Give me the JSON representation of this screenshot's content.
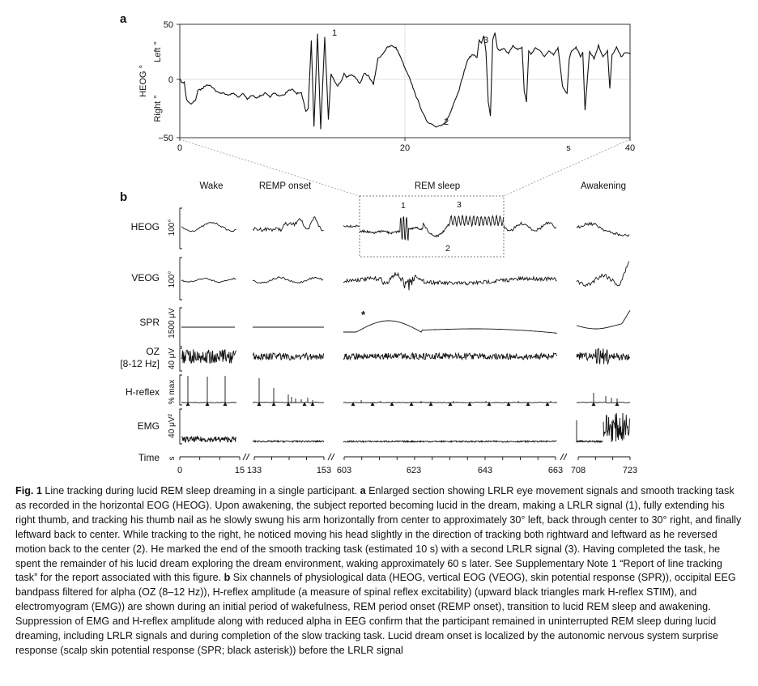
{
  "figure": {
    "panel_a_label": "a",
    "panel_b_label": "b",
    "chart_a": {
      "type": "line",
      "ylabel_group": "HEOG °",
      "ylabel_left": "Left °",
      "ylabel_right": "Right °",
      "y_ticks": [
        "50",
        "0",
        "−50"
      ],
      "x_ticks": [
        "0",
        "20",
        "40"
      ],
      "x_unit": "s",
      "ylim": [
        -50,
        50
      ],
      "xlim": [
        0,
        40
      ],
      "grid": true,
      "annotations": [
        "1",
        "2",
        "3"
      ]
    },
    "panel_b": {
      "column_headers": [
        "Wake",
        "REMP onset",
        "REM sleep",
        "Awakening"
      ],
      "channels": [
        {
          "label": "HEOG",
          "scale": "100°"
        },
        {
          "label": "VEOG",
          "scale": "100°"
        },
        {
          "label": "SPR",
          "scale": "1500 μV"
        },
        {
          "label": "OZ",
          "label2": "[8-12 Hz]",
          "scale": "40 μV"
        },
        {
          "label": "H-reflex",
          "scale": "% max"
        },
        {
          "label": "EMG",
          "scale": "40 μV²"
        }
      ],
      "time_label": "Time",
      "time_unit": "s",
      "time_ticks": [
        "0",
        "15",
        "133",
        "153",
        "603",
        "623",
        "643",
        "663",
        "708",
        "723"
      ],
      "box_annotations": [
        "1",
        "3",
        "2"
      ],
      "spr_marker": "*"
    }
  },
  "caption": {
    "label": "Fig. 1",
    "title": "Line tracking during lucid REM sleep dreaming in a single participant.",
    "a_label": "a",
    "a_text": "Enlarged section showing LRLR eye movement signals and smooth tracking task as recorded in the horizontal EOG (HEOG). Upon awakening, the subject reported becoming lucid in the dream, making a LRLR signal (1), fully extending his right thumb, and tracking his thumb nail as he slowly swung his arm horizontally from center to approximately 30° left, back through center to 30° right, and finally leftward back to center. While tracking to the right, he noticed moving his head slightly in the direction of tracking both rightward and leftward as he reversed motion back to the center (2). He marked the end of the smooth tracking task (estimated 10 s) with a second LRLR signal (3). Having completed the task, he spent the remainder of his lucid dream exploring the dream environment, waking approximately 60 s later. See Supplementary Note 1 “Report of line tracking task” for the report associated with this figure.",
    "b_label": "b",
    "b_text": "Six channels of physiological data (HEOG, vertical EOG (VEOG), skin potential response (SPR)), occipital EEG bandpass filtered for alpha (OZ (8–12 Hz)), H-reflex amplitude (a measure of spinal reflex excitability) (upward black triangles mark H-reflex STIM), and electromyogram (EMG)) are shown during an initial period of wakefulness, REM period onset (REMP onset), transition to lucid REM sleep and awakening. Suppression of EMG and H-reflex amplitude along with reduced alpha in EEG confirm that the participant remained in uninterrupted REM sleep during lucid dreaming, including LRLR signals and during completion of the slow tracking task. Lucid dream onset is localized by the autonomic nervous system surprise response (scalp skin potential response (SPR; black asterisk)) before the LRLR signal"
  }
}
